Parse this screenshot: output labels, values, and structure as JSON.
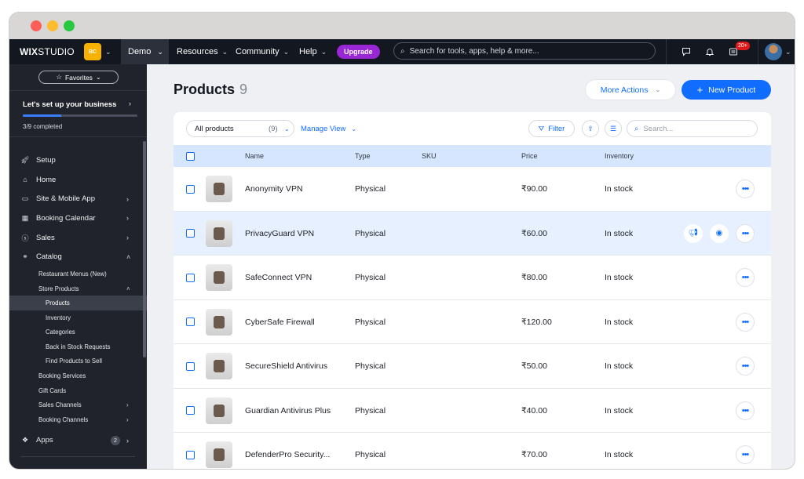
{
  "topbar": {
    "logo_bold": "WIX",
    "logo_thin": "STUDIO",
    "site_badge": "BC",
    "site_name": "Demo",
    "nav": [
      "Resources",
      "Community",
      "Help"
    ],
    "upgrade": "Upgrade",
    "search_placeholder": "Search for tools, apps, help & more...",
    "notification_badge": "20+"
  },
  "sidebar": {
    "favorites": "Favorites",
    "setup_title": "Let's set up your business",
    "setup_progress": "3/9 completed",
    "setup_fraction": 0.333,
    "items": [
      {
        "label": "Setup",
        "icon": "rocket-icon"
      },
      {
        "label": "Home",
        "icon": "home-icon"
      },
      {
        "label": "Site & Mobile App",
        "icon": "site-icon"
      },
      {
        "label": "Booking Calendar",
        "icon": "calendar-icon"
      },
      {
        "label": "Sales",
        "icon": "dollar-icon"
      },
      {
        "label": "Catalog",
        "icon": "catalog-icon"
      }
    ],
    "catalog_sub": [
      "Restaurant Menus (New)",
      "Store Products",
      "Products",
      "Inventory",
      "Categories",
      "Back in Stock Requests",
      "Find Products to Sell",
      "Booking Services",
      "Gift Cards",
      "Sales Channels",
      "Booking Channels"
    ],
    "apps_label": "Apps",
    "apps_count": "2"
  },
  "main": {
    "title": "Products",
    "count": "9",
    "more_actions": "More Actions",
    "new_product": "New Product",
    "filter_select": "All products",
    "filter_select_count": "(9)",
    "manage_view": "Manage View",
    "filter": "Filter",
    "search_placeholder": "Search...",
    "columns": [
      "Name",
      "Type",
      "SKU",
      "Price",
      "Inventory"
    ],
    "rows": [
      {
        "name": "Anonymity VPN",
        "type": "Physical",
        "sku": "",
        "price": "₹90.00",
        "inventory": "In stock"
      },
      {
        "name": "PrivacyGuard VPN",
        "type": "Physical",
        "sku": "",
        "price": "₹60.00",
        "inventory": "In stock"
      },
      {
        "name": "SafeConnect VPN",
        "type": "Physical",
        "sku": "",
        "price": "₹80.00",
        "inventory": "In stock"
      },
      {
        "name": "CyberSafe Firewall",
        "type": "Physical",
        "sku": "",
        "price": "₹120.00",
        "inventory": "In stock"
      },
      {
        "name": "SecureShield Antivirus",
        "type": "Physical",
        "sku": "",
        "price": "₹50.00",
        "inventory": "In stock"
      },
      {
        "name": "Guardian Antivirus Plus",
        "type": "Physical",
        "sku": "",
        "price": "₹40.00",
        "inventory": "In stock"
      },
      {
        "name": "DefenderPro Security...",
        "type": "Physical",
        "sku": "",
        "price": "₹70.00",
        "inventory": "In stock"
      }
    ]
  }
}
